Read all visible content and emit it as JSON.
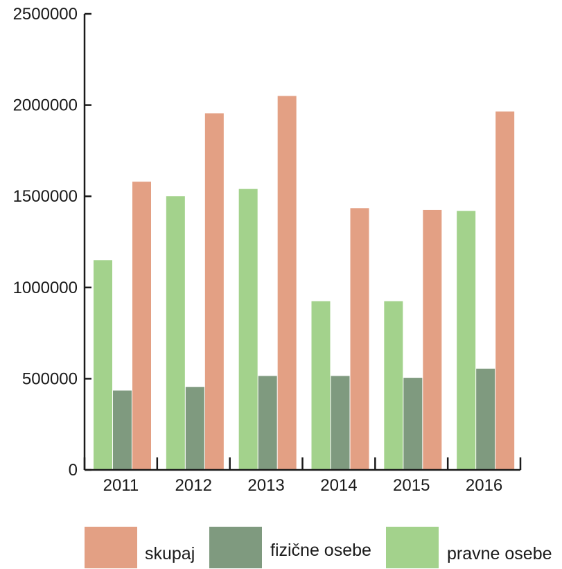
{
  "chart_data": {
    "type": "bar",
    "title": "",
    "xlabel": "",
    "ylabel": "",
    "categories": [
      "2011",
      "2012",
      "2013",
      "2014",
      "2015",
      "2016"
    ],
    "series": [
      {
        "name": "pravne osebe",
        "color": "#a3d28c",
        "values": [
          1150000,
          1500000,
          1540000,
          925000,
          925000,
          1420000
        ]
      },
      {
        "name": "fizične osebe",
        "color": "#7f9a7f",
        "values": [
          435000,
          455000,
          515000,
          515000,
          505000,
          555000
        ]
      },
      {
        "name": "skupaj",
        "color": "#e3a084",
        "values": [
          1580000,
          1955000,
          2050000,
          1435000,
          1425000,
          1965000
        ]
      }
    ],
    "ylim": [
      0,
      2500000
    ],
    "yticks": [
      0,
      500000,
      1000000,
      1500000,
      2000000,
      2500000
    ],
    "ytick_labels": [
      "0",
      "500000",
      "1000000",
      "1500000",
      "2000000",
      "2500000"
    ],
    "grid": false,
    "legend_position": "bottom"
  },
  "legend": {
    "items": [
      {
        "label": "skupaj",
        "color": "#e3a084"
      },
      {
        "label": "fizične osebe",
        "color": "#7f9a7f"
      },
      {
        "label": "pravne osebe",
        "color": "#a3d28c"
      }
    ]
  }
}
